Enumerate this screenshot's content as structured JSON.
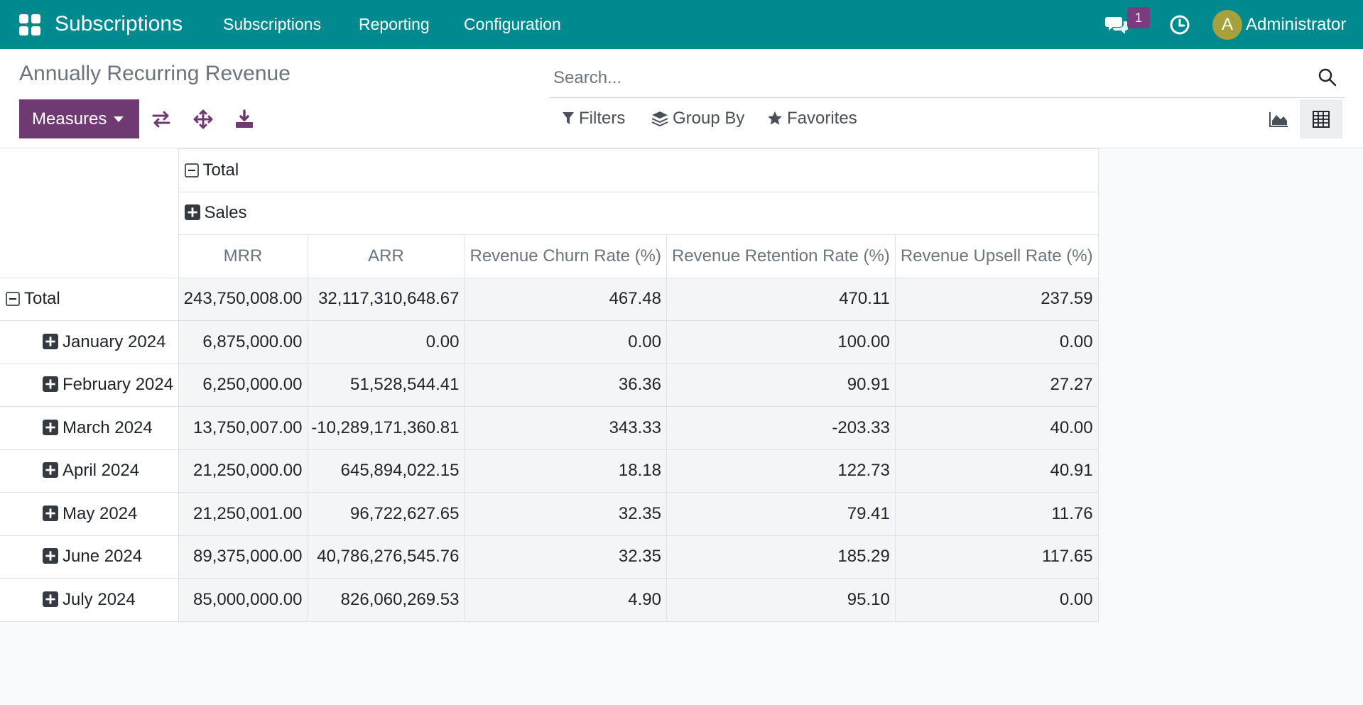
{
  "navbar": {
    "brand": "Subscriptions",
    "menu": [
      "Subscriptions",
      "Reporting",
      "Configuration"
    ],
    "message_count": "1",
    "avatar_initial": "A",
    "user": "Administrator",
    "bg_color": "#00898f"
  },
  "control": {
    "title": "Annually Recurring Revenue",
    "measures_label": "Measures",
    "search_placeholder": "Search...",
    "filters_label": "Filters",
    "group_by_label": "Group By",
    "favorites_label": "Favorites",
    "active_view": "pivot"
  },
  "pivot": {
    "col_total": "Total",
    "col_group": "Sales",
    "measures": [
      "MRR",
      "ARR",
      "Revenue Churn Rate (%)",
      "Revenue Retention Rate (%)",
      "Revenue Upsell Rate (%)"
    ],
    "total_row": {
      "label": "Total",
      "values": [
        "243,750,008.00",
        "32,117,310,648.67",
        "467.48",
        "470.11",
        "237.59"
      ]
    },
    "rows": [
      {
        "label": "January 2024",
        "values": [
          "6,875,000.00",
          "0.00",
          "0.00",
          "100.00",
          "0.00"
        ]
      },
      {
        "label": "February 2024",
        "values": [
          "6,250,000.00",
          "51,528,544.41",
          "36.36",
          "90.91",
          "27.27"
        ]
      },
      {
        "label": "March 2024",
        "values": [
          "13,750,007.00",
          "-10,289,171,360.81",
          "343.33",
          "-203.33",
          "40.00"
        ]
      },
      {
        "label": "April 2024",
        "values": [
          "21,250,000.00",
          "645,894,022.15",
          "18.18",
          "122.73",
          "40.91"
        ]
      },
      {
        "label": "May 2024",
        "values": [
          "21,250,001.00",
          "96,722,627.65",
          "32.35",
          "79.41",
          "11.76"
        ]
      },
      {
        "label": "June 2024",
        "values": [
          "89,375,000.00",
          "40,786,276,545.76",
          "32.35",
          "185.29",
          "117.65"
        ]
      },
      {
        "label": "July 2024",
        "values": [
          "85,000,000.00",
          "826,060,269.53",
          "4.90",
          "95.10",
          "0.00"
        ]
      }
    ]
  }
}
